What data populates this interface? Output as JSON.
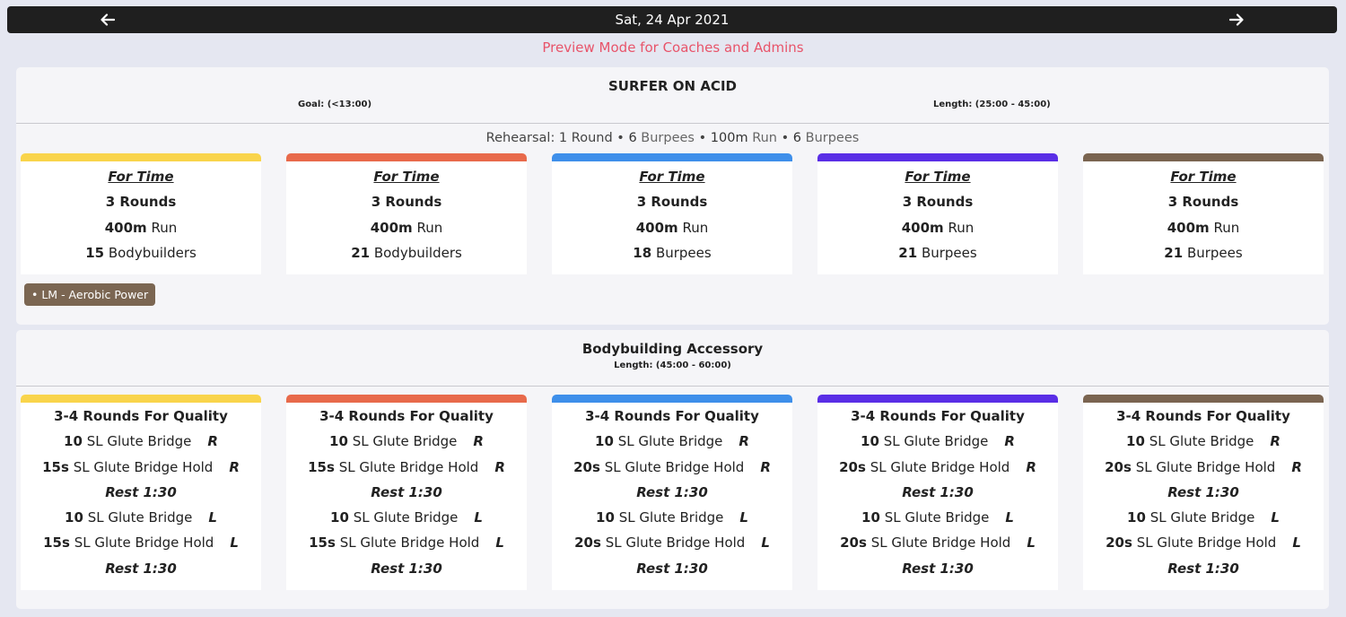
{
  "header": {
    "date": "Sat, 24 Apr 2021",
    "prev_icon": "←",
    "next_icon": "→"
  },
  "preview_text": "Preview Mode for Coaches and Admins",
  "colors": [
    "#f9d44b",
    "#e86a4b",
    "#3e8fea",
    "#5a2ee6",
    "#7a6450"
  ],
  "workout1": {
    "title": "SURFER ON ACID",
    "goal": "Goal: (<13:00)",
    "length": "Length: (25:00 - 45:00)",
    "rehearsal_prefix": "Rehearsal: 1 Round",
    "rehearsal_parts": [
      "6",
      "Burpees",
      "100m",
      "Run",
      "6",
      "Burpees"
    ],
    "cards": [
      {
        "format": "For Time",
        "rounds": "3 Rounds",
        "run_dist": "400m",
        "run_label": "Run",
        "reps": "15",
        "movement": "Bodybuilders"
      },
      {
        "format": "For Time",
        "rounds": "3 Rounds",
        "run_dist": "400m",
        "run_label": "Run",
        "reps": "21",
        "movement": "Bodybuilders"
      },
      {
        "format": "For Time",
        "rounds": "3 Rounds",
        "run_dist": "400m",
        "run_label": "Run",
        "reps": "18",
        "movement": "Burpees"
      },
      {
        "format": "For Time",
        "rounds": "3 Rounds",
        "run_dist": "400m",
        "run_label": "Run",
        "reps": "21",
        "movement": "Burpees"
      },
      {
        "format": "For Time",
        "rounds": "3 Rounds",
        "run_dist": "400m",
        "run_label": "Run",
        "reps": "21",
        "movement": "Burpees"
      }
    ],
    "tag": "• LM - Aerobic Power"
  },
  "workout2": {
    "title": "Bodybuilding Accessory",
    "length": "Length: (45:00 - 60:00)",
    "cards": [
      {
        "format": "3-4 Rounds For Quality",
        "rows": [
          {
            "a": "10",
            "m": "SL Glute Bridge",
            "s": "R"
          },
          {
            "a": "15s",
            "m": "SL Glute Bridge Hold",
            "s": "R"
          },
          {
            "rest": "Rest 1:30"
          },
          {
            "a": "10",
            "m": "SL Glute Bridge",
            "s": "L"
          },
          {
            "a": "15s",
            "m": "SL Glute Bridge Hold",
            "s": "L"
          },
          {
            "rest": "Rest 1:30"
          }
        ]
      },
      {
        "format": "3-4 Rounds For Quality",
        "rows": [
          {
            "a": "10",
            "m": "SL Glute Bridge",
            "s": "R"
          },
          {
            "a": "15s",
            "m": "SL Glute Bridge Hold",
            "s": "R"
          },
          {
            "rest": "Rest 1:30"
          },
          {
            "a": "10",
            "m": "SL Glute Bridge",
            "s": "L"
          },
          {
            "a": "15s",
            "m": "SL Glute Bridge Hold",
            "s": "L"
          },
          {
            "rest": "Rest 1:30"
          }
        ]
      },
      {
        "format": "3-4 Rounds For Quality",
        "rows": [
          {
            "a": "10",
            "m": "SL Glute Bridge",
            "s": "R"
          },
          {
            "a": "20s",
            "m": "SL Glute Bridge Hold",
            "s": "R"
          },
          {
            "rest": "Rest 1:30"
          },
          {
            "a": "10",
            "m": "SL Glute Bridge",
            "s": "L"
          },
          {
            "a": "20s",
            "m": "SL Glute Bridge Hold",
            "s": "L"
          },
          {
            "rest": "Rest 1:30"
          }
        ]
      },
      {
        "format": "3-4 Rounds For Quality",
        "rows": [
          {
            "a": "10",
            "m": "SL Glute Bridge",
            "s": "R"
          },
          {
            "a": "20s",
            "m": "SL Glute Bridge Hold",
            "s": "R"
          },
          {
            "rest": "Rest 1:30"
          },
          {
            "a": "10",
            "m": "SL Glute Bridge",
            "s": "L"
          },
          {
            "a": "20s",
            "m": "SL Glute Bridge Hold",
            "s": "L"
          },
          {
            "rest": "Rest 1:30"
          }
        ]
      },
      {
        "format": "3-4 Rounds For Quality",
        "rows": [
          {
            "a": "10",
            "m": "SL Glute Bridge",
            "s": "R"
          },
          {
            "a": "20s",
            "m": "SL Glute Bridge Hold",
            "s": "R"
          },
          {
            "rest": "Rest 1:30"
          },
          {
            "a": "10",
            "m": "SL Glute Bridge",
            "s": "L"
          },
          {
            "a": "20s",
            "m": "SL Glute Bridge Hold",
            "s": "L"
          },
          {
            "rest": "Rest 1:30"
          }
        ]
      }
    ]
  }
}
